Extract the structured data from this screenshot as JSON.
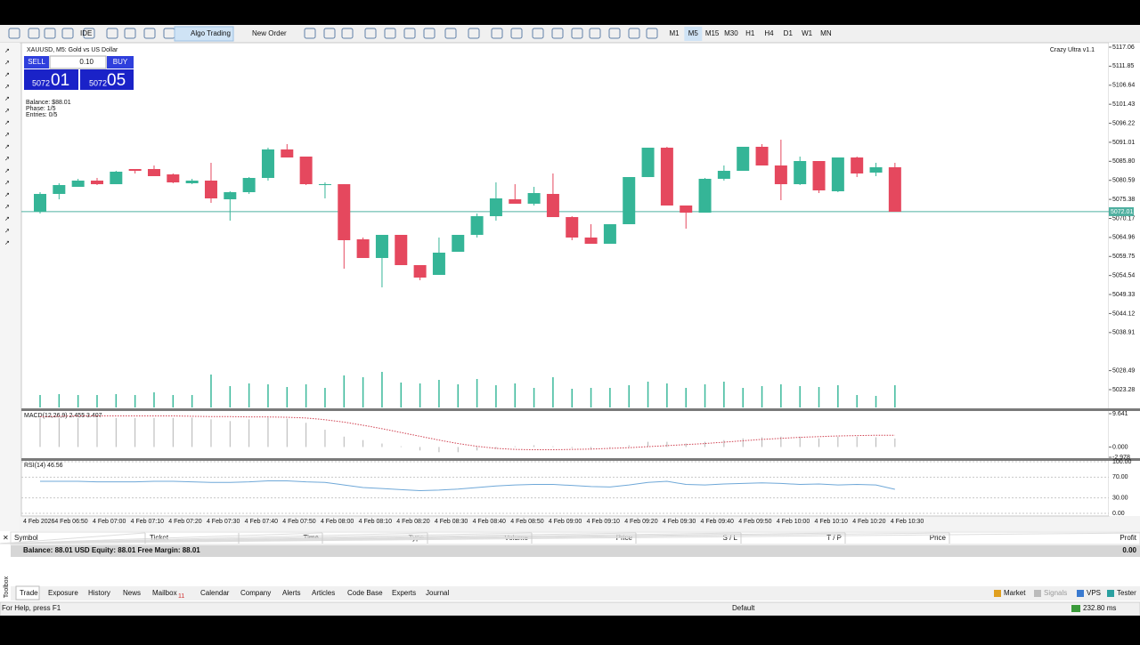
{
  "toolbar": {
    "ide": "IDE",
    "algo_trading": "Algo Trading",
    "new_order": "New Order",
    "timeframes": [
      "M1",
      "M5",
      "M15",
      "M30",
      "H1",
      "H4",
      "D1",
      "W1",
      "MN"
    ],
    "active_timeframe_index": 1
  },
  "chart": {
    "symbol_title": "XAUUSD, M5:  Gold vs US Dollar",
    "indicator_name": "Crazy Ultra v1.1",
    "trade_panel": {
      "sell": "SELL",
      "lot": "0.10",
      "buy": "BUY",
      "bid_big": "5072",
      "bid_small": "01",
      "ask_big": "5072",
      "ask_small": "05"
    },
    "info_lines": [
      "Balance: $88.01",
      "Phase: 1/5",
      "Entries: 0/5"
    ],
    "ylim": [
      5018.4,
      5118.28
    ],
    "yticks": [
      5117.06,
      5111.85,
      5106.64,
      5101.43,
      5096.22,
      5091.01,
      {
        "value": 5085.8,
        "label": "5085.80"
      },
      5080.59,
      5075.38,
      5070.17,
      5064.96,
      5059.75,
      5054.54,
      5049.33,
      5044.12,
      5038.91,
      5028.49,
      5023.28
    ],
    "current_price": 5072.01,
    "time_labels": [
      "4 Feb 2026",
      "4 Feb 06:50",
      "4 Feb 07:00",
      "4 Feb 07:10",
      "4 Feb 07:20",
      "4 Feb 07:30",
      "4 Feb 07:40",
      "4 Feb 07:50",
      "4 Feb 08:00",
      "4 Feb 08:10",
      "4 Feb 08:20",
      "4 Feb 08:30",
      "4 Feb 08:40",
      "4 Feb 08:50",
      "4 Feb 09:00",
      "4 Feb 09:10",
      "4 Feb 09:20",
      "4 Feb 09:30",
      "4 Feb 09:40",
      "4 Feb 09:50",
      "4 Feb 10:00",
      "4 Feb 10:10",
      "4 Feb 10:20",
      "4 Feb 10:30"
    ],
    "up_color": "#35b597",
    "down_color": "#e5485e",
    "volume_color": "#3bb99b",
    "price_line_color": "#4fb0a0",
    "candles": {
      "open": [
        5071.99,
        5076.87,
        5078.81,
        5080.52,
        5079.54,
        5083.69,
        5083.69,
        5082.22,
        5079.79,
        5080.52,
        5075.4,
        5077.35,
        5081.25,
        5089.05,
        5087.1,
        5079.54,
        5079.54,
        5064.44,
        5059.33,
        5065.66,
        5057.38,
        5054.7,
        5061.03,
        5065.66,
        5070.78,
        5075.4,
        5074.19,
        5076.87,
        5070.53,
        5064.93,
        5063.22,
        5068.58,
        5081.49,
        5089.53,
        5073.7,
        5071.75,
        5081.01,
        5083.2,
        5089.78,
        5084.66,
        5079.54,
        5085.88,
        5077.6,
        5086.85,
        5082.71,
        5084.17
      ],
      "high": [
        5077.35,
        5079.79,
        5081.01,
        5081.25,
        5083.2,
        5083.69,
        5084.66,
        5082.47,
        5081.01,
        5085.39,
        5077.6,
        5081.49,
        5089.53,
        5090.51,
        5087.1,
        5080.03,
        5079.54,
        5064.93,
        5065.66,
        5065.66,
        5057.38,
        5064.93,
        5065.66,
        5071.51,
        5080.03,
        5079.54,
        5078.81,
        5082.47,
        5070.78,
        5068.58,
        5068.58,
        5081.49,
        5089.53,
        5089.78,
        5073.7,
        5081.25,
        5084.66,
        5089.78,
        5090.51,
        5091.72,
        5087.1,
        5085.88,
        5086.85,
        5087.1,
        5085.39,
        5085.39
      ],
      "low": [
        5071.51,
        5075.4,
        5078.81,
        5079.3,
        5079.54,
        5082.47,
        5081.74,
        5079.79,
        5079.54,
        5074.43,
        5069.56,
        5076.87,
        5080.52,
        5086.85,
        5079.3,
        5075.65,
        5056.4,
        5059.33,
        5051.29,
        5057.38,
        5053.24,
        5054.7,
        5061.03,
        5064.93,
        5069.56,
        5074.19,
        5073.7,
        5070.53,
        5064.2,
        5063.22,
        5063.22,
        5068.58,
        5081.49,
        5073.7,
        5067.36,
        5071.75,
        5080.52,
        5083.2,
        5084.66,
        5075.16,
        5079.3,
        5077.11,
        5077.35,
        5081.49,
        5081.74,
        5071.99
      ],
      "close": [
        5076.87,
        5079.3,
        5080.52,
        5079.54,
        5082.96,
        5083.2,
        5081.74,
        5080.03,
        5080.52,
        5075.65,
        5077.35,
        5081.25,
        5089.05,
        5086.85,
        5079.54,
        5079.54,
        5064.2,
        5059.33,
        5065.66,
        5057.38,
        5053.97,
        5060.79,
        5065.66,
        5070.78,
        5075.65,
        5074.19,
        5077.11,
        5070.53,
        5064.93,
        5063.22,
        5068.58,
        5081.49,
        5089.53,
        5073.7,
        5071.75,
        5081.01,
        5083.2,
        5089.78,
        5084.66,
        5079.54,
        5085.88,
        5077.84,
        5086.85,
        5082.47,
        5084.17,
        5071.99
      ]
    },
    "volume_lim": [
      0,
      100
    ],
    "volumes": [
      14,
      15,
      14,
      14,
      15,
      14,
      17,
      14,
      14,
      37,
      24,
      27,
      26,
      23,
      26,
      22,
      36,
      34,
      40,
      28,
      27,
      31,
      26,
      32,
      25,
      27,
      22,
      34,
      21,
      22,
      22,
      25,
      29,
      27,
      22,
      26,
      29,
      22,
      24,
      26,
      24,
      23,
      25,
      14,
      13,
      25
    ]
  },
  "macd": {
    "label": "MACD(12,26,9) 2.455 3.407",
    "ylim": [
      -2.978,
      9.641
    ],
    "yticks": [
      9.641,
      {
        "value": 0,
        "label": "0.000"
      },
      -2.978
    ],
    "histogram_color": "#b4b4b4",
    "signal_color": "#d04050",
    "histogram": [
      8.4,
      8.4,
      8.4,
      8.4,
      8.4,
      8.4,
      8.4,
      8.4,
      8.5,
      8.0,
      7.5,
      8.0,
      8.5,
      8.2,
      7.0,
      5.0,
      3.0,
      2.0,
      1.0,
      0.2,
      -1.0,
      -1.5,
      -1.5,
      -1.0,
      -0.5,
      0.2,
      0.5,
      0.2,
      -0.3,
      -0.8,
      -0.5,
      0.5,
      1.5,
      1.5,
      1.0,
      1.5,
      2.0,
      2.5,
      2.8,
      3.0,
      3.0,
      2.5,
      3.0,
      3.0,
      2.8,
      2.455
    ],
    "signal": [
      8.8,
      8.9,
      9.0,
      9.0,
      9.0,
      9.0,
      9.0,
      9.0,
      8.9,
      8.8,
      8.8,
      8.7,
      8.7,
      8.6,
      8.4,
      7.9,
      7.2,
      6.3,
      5.3,
      4.2,
      3.1,
      2.0,
      1.0,
      0.2,
      -0.4,
      -0.7,
      -0.8,
      -0.8,
      -0.7,
      -0.6,
      -0.4,
      -0.2,
      0.1,
      0.4,
      0.7,
      1.0,
      1.4,
      1.8,
      2.2,
      2.5,
      2.8,
      3.0,
      3.2,
      3.3,
      3.4,
      3.407
    ]
  },
  "rsi": {
    "label": "RSI(14) 46.56",
    "ylim": [
      0,
      100
    ],
    "yticks": [
      {
        "value": 100,
        "label": "100.00"
      },
      {
        "value": 70,
        "label": "70.00"
      },
      {
        "value": 30,
        "label": "30.00"
      },
      {
        "value": 0,
        "label": "0.00"
      }
    ],
    "color": "#6fa8d8",
    "values": [
      62,
      62,
      62,
      61,
      61,
      61,
      62,
      62,
      61,
      60,
      60,
      61,
      63,
      63,
      61,
      60,
      55,
      50,
      48,
      46,
      44,
      45,
      47,
      50,
      53,
      55,
      56,
      56,
      54,
      52,
      51,
      55,
      60,
      62,
      56,
      55,
      57,
      58,
      59,
      58,
      56,
      57,
      55,
      56,
      55,
      46.56
    ]
  },
  "toolbox": {
    "title": "Toolbox",
    "columns": [
      "Symbol",
      "Ticket",
      "Time",
      "Type",
      "Volume",
      "Price",
      "S / L",
      "T / P",
      "Price",
      "Profit"
    ],
    "balance_row": "Balance: 88.01 USD  Equity: 88.01  Free Margin: 88.01",
    "balance_profit": "0.00",
    "tabs": [
      "Trade",
      "Exposure",
      "History",
      "News",
      "Mailbox",
      "Calendar",
      "Company",
      "Alerts",
      "Articles",
      "Code Base",
      "Experts",
      "Journal"
    ],
    "mailbox_count": "11",
    "active_tab_index": 0,
    "right_buttons": [
      "Market",
      "Signals",
      "VPS",
      "Tester"
    ]
  },
  "status": {
    "help": "For Help, press F1",
    "profile": "Default",
    "ping": "232.80 ms"
  }
}
